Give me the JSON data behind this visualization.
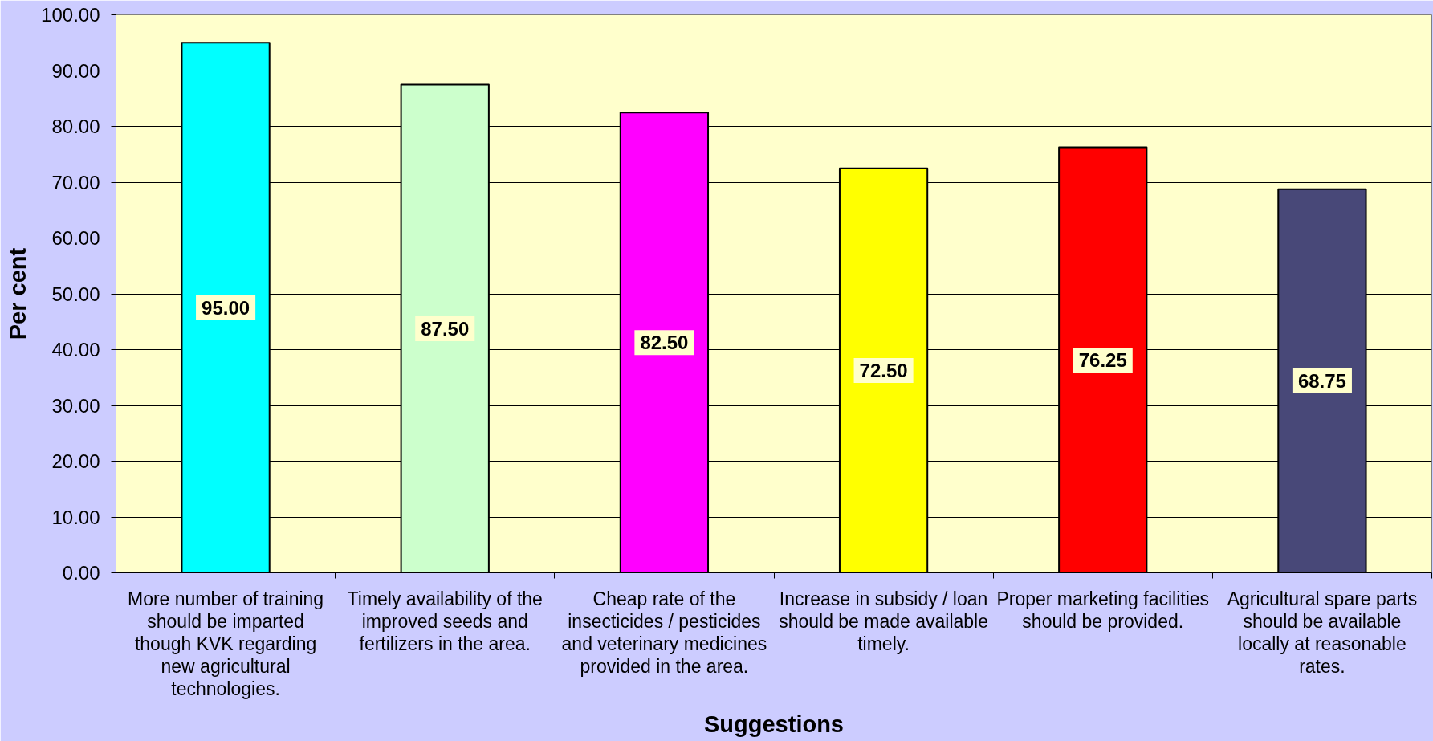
{
  "chart_data": {
    "type": "bar",
    "xlabel": "Suggestions",
    "ylabel": "Per cent",
    "categories": [
      "More number of training should be imparted though KVK regarding new agricultural technologies.",
      "Timely availability of the improved seeds and fertilizers in the area.",
      "Cheap rate of the insecticides / pesticides and veterinary medicines provided in the area.",
      "Increase in subsidy / loan should be made available timely.",
      "Proper marketing facilities should be provided.",
      "Agricultural spare parts should be available locally at reasonable rates."
    ],
    "values": [
      95,
      87.5,
      82.5,
      72.5,
      76.25,
      68.75
    ],
    "colors": [
      "#00ffff",
      "#ccffcc",
      "#ff00ff",
      "#ffff00",
      "#ff0000",
      "#484878"
    ],
    "value_labels": [
      "95.00",
      "87.50",
      "82.50",
      "72.50",
      "76.25",
      "68.75"
    ],
    "ylim": [
      0,
      100
    ],
    "yticks": [
      {
        "value": 0,
        "label": "0.00"
      },
      {
        "value": 10,
        "label": "10.00"
      },
      {
        "value": 20,
        "label": "20.00"
      },
      {
        "value": 30,
        "label": "30.00"
      },
      {
        "value": 40,
        "label": "40.00"
      },
      {
        "value": 50,
        "label": "50.00"
      },
      {
        "value": 60,
        "label": "60.00"
      },
      {
        "value": 70,
        "label": "70.00"
      },
      {
        "value": 80,
        "label": "80.00"
      },
      {
        "value": 90,
        "label": "90.00"
      },
      {
        "value": 100,
        "label": "100.00"
      }
    ],
    "grid": "y"
  }
}
